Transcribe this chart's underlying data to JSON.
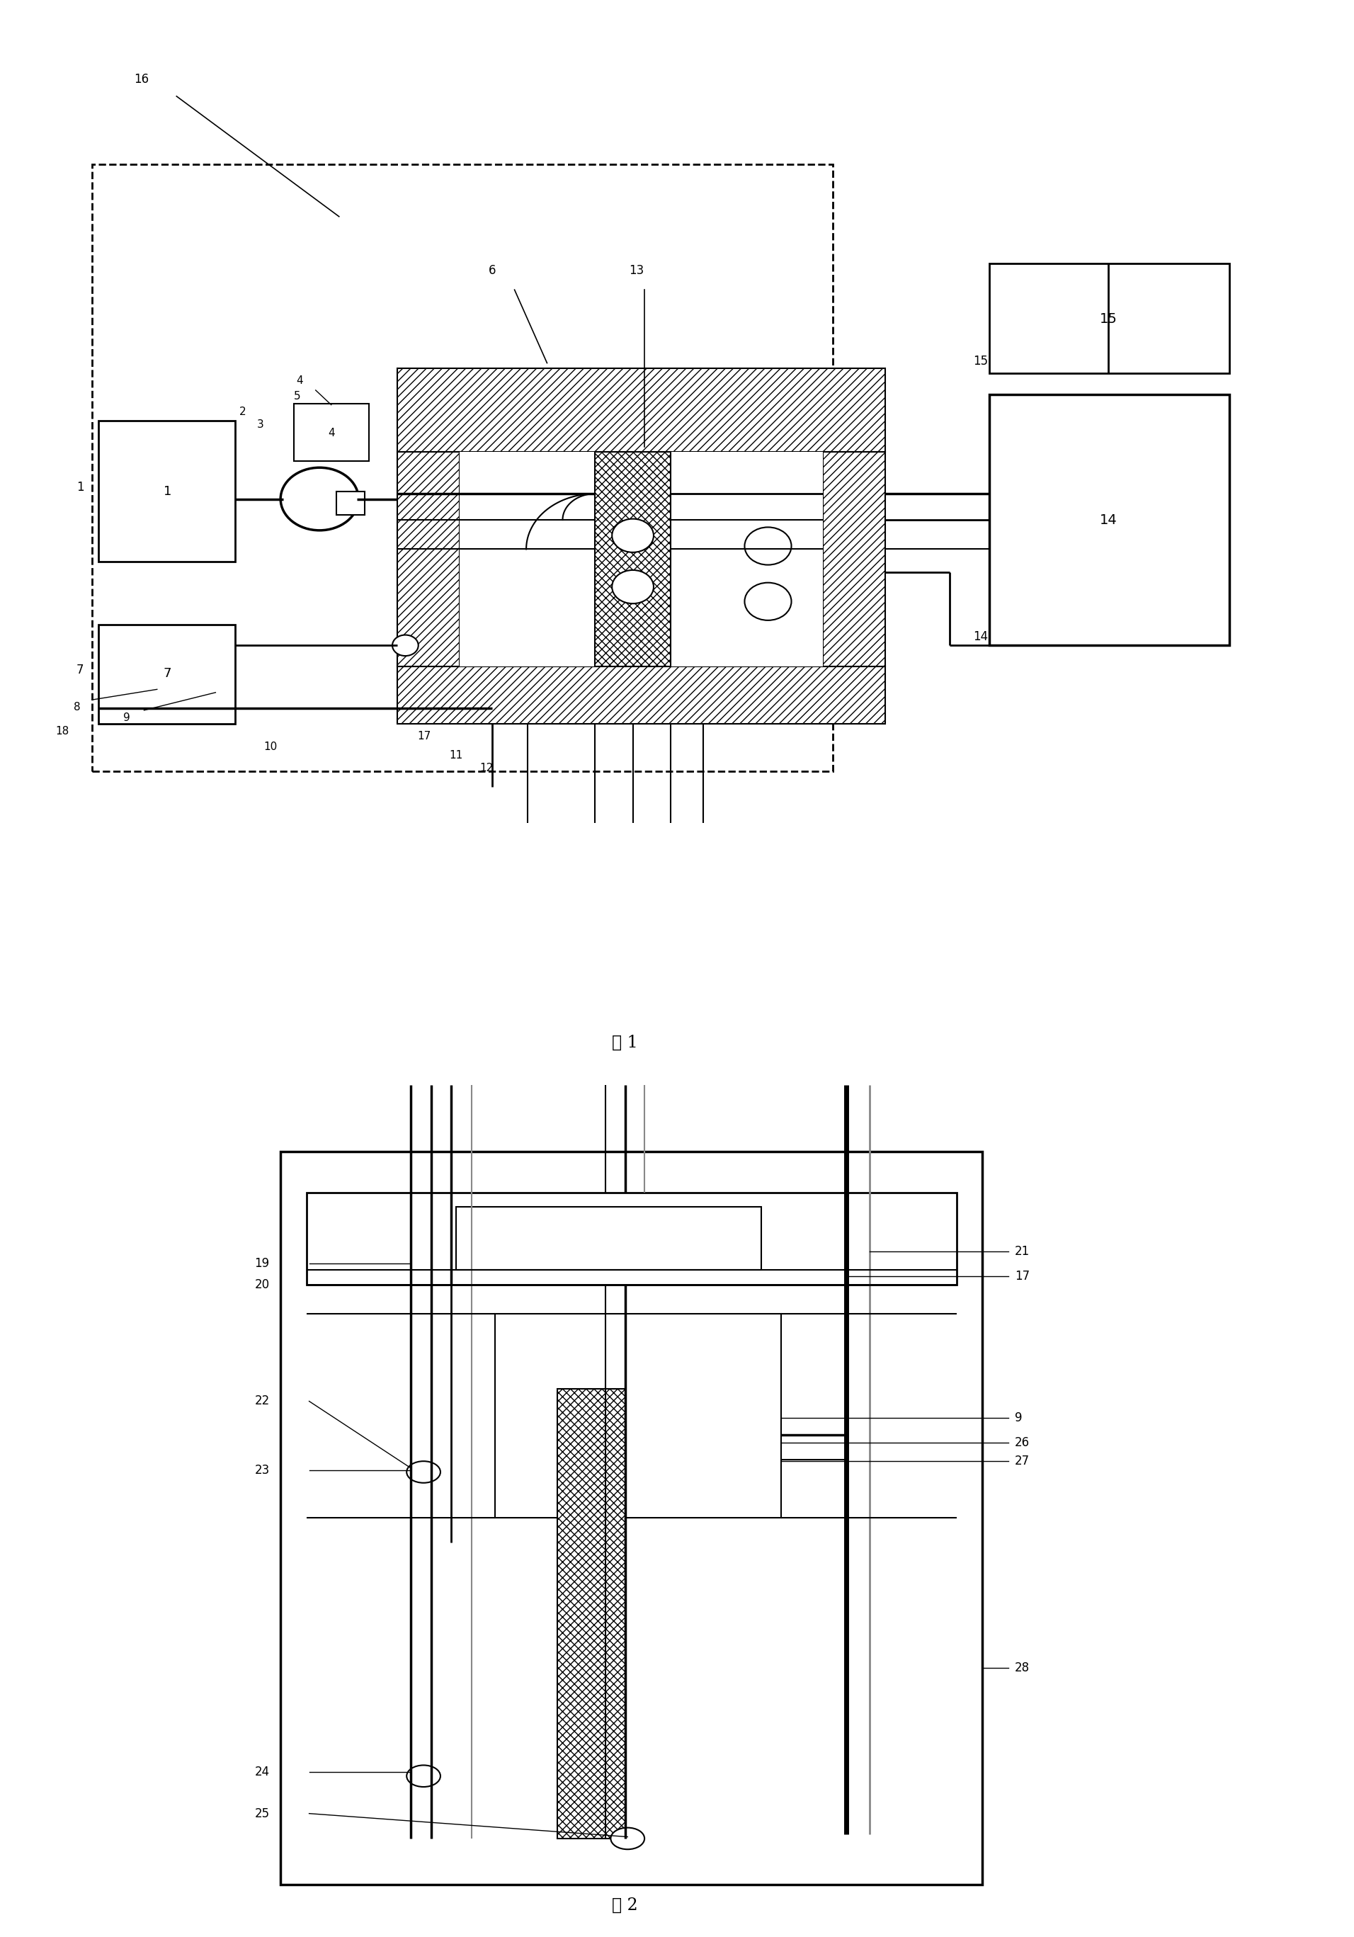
{
  "fig_width": 19.12,
  "fig_height": 27.35,
  "bg_color": "#ffffff",
  "fig1_caption": "图 1",
  "fig2_caption": "图 2"
}
